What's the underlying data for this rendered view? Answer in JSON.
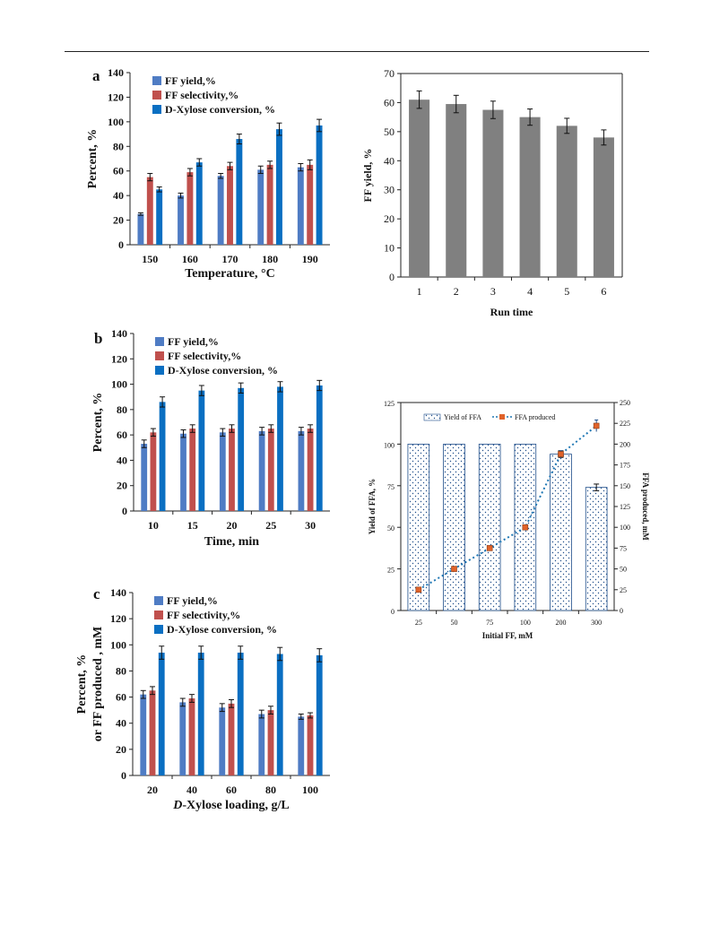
{
  "colors": {
    "ff_yield": "#4f7cc4",
    "ff_selectivity": "#c0504d",
    "xylose_conversion": "#0a6fc2",
    "run_bar": "#808080",
    "ffa_line": "#1f77b4",
    "ffa_marker": "#e0632b",
    "ffa_bar_fill": "#ffffff",
    "ffa_bar_dots": "#1f4e8a"
  },
  "chart_data": [
    {
      "id": "a",
      "type": "bar",
      "panel_label": "a",
      "xlabel": "Temperature, °C",
      "ylabel": "Percent, %",
      "ylim": [
        0,
        140
      ],
      "yticks": [
        0,
        20,
        40,
        60,
        80,
        100,
        120,
        140
      ],
      "categories": [
        "150",
        "160",
        "170",
        "180",
        "190"
      ],
      "legend_position": "top-left",
      "series": [
        {
          "name": "FF yield,%",
          "color_key": "ff_yield",
          "values": [
            25,
            40,
            56,
            61,
            63
          ],
          "errors": [
            1,
            2,
            2,
            3,
            3
          ]
        },
        {
          "name": "FF selectivity,%",
          "color_key": "ff_selectivity",
          "values": [
            55,
            59,
            64,
            65,
            65
          ],
          "errors": [
            3,
            3,
            3,
            3,
            4
          ]
        },
        {
          "name": "D-Xylose conversion, %",
          "color_key": "xylose_conversion",
          "values": [
            45,
            67,
            86,
            94,
            97
          ],
          "errors": [
            2,
            3,
            4,
            5,
            5
          ]
        }
      ]
    },
    {
      "id": "run",
      "type": "bar",
      "xlabel": "Run time",
      "ylabel": "FF yield, %",
      "ylim": [
        0,
        70
      ],
      "yticks": [
        0,
        10,
        20,
        30,
        40,
        50,
        60,
        70
      ],
      "categories": [
        "1",
        "2",
        "3",
        "4",
        "5",
        "6"
      ],
      "series": [
        {
          "color_key": "run_bar",
          "values": [
            61,
            59.5,
            57.5,
            55,
            52,
            48
          ],
          "errors": [
            3,
            3,
            3,
            2.8,
            2.6,
            2.6
          ]
        }
      ]
    },
    {
      "id": "b",
      "type": "bar",
      "panel_label": "b",
      "xlabel": "Time, min",
      "ylabel": "Percent, %",
      "ylim": [
        0,
        140
      ],
      "yticks": [
        0,
        20,
        40,
        60,
        80,
        100,
        120,
        140
      ],
      "categories": [
        "10",
        "15",
        "20",
        "25",
        "30"
      ],
      "legend_position": "top-left",
      "series": [
        {
          "name": "FF yield,%",
          "color_key": "ff_yield",
          "values": [
            53,
            61,
            62,
            63,
            63
          ],
          "errors": [
            3,
            3,
            3,
            3,
            3
          ]
        },
        {
          "name": "FF selectivity,%",
          "color_key": "ff_selectivity",
          "values": [
            62,
            65,
            65,
            65,
            65
          ],
          "errors": [
            3,
            3,
            3,
            3,
            3
          ]
        },
        {
          "name": "D-Xylose conversion, %",
          "color_key": "xylose_conversion",
          "values": [
            86,
            95,
            97,
            98,
            99
          ],
          "errors": [
            4,
            4,
            4,
            4,
            4
          ]
        }
      ]
    },
    {
      "id": "ffa",
      "type": "bar",
      "xlabel": "Initial FF, mM",
      "ylabel": "Yield of FFA, %",
      "y2label": "FFA produced, mM",
      "ylim": [
        0,
        125
      ],
      "yticks": [
        0,
        25,
        50,
        75,
        100,
        125
      ],
      "y2lim": [
        0,
        250
      ],
      "y2ticks": [
        0,
        25,
        50,
        75,
        100,
        125,
        150,
        175,
        200,
        225,
        250
      ],
      "categories": [
        "25",
        "50",
        "75",
        "100",
        "200",
        "300"
      ],
      "legend_position": "top",
      "series": [
        {
          "name": "Yield of FFA",
          "color_key": "ffa_bar_fill",
          "values": [
            100,
            100,
            100,
            100,
            94,
            74
          ],
          "errors": [
            0,
            0,
            0,
            0,
            2,
            2
          ]
        },
        {
          "name": "FFA produced",
          "axis": "right",
          "style": "dotted-line",
          "color_key": "ffa_line",
          "values": [
            25,
            50,
            75,
            100,
            188,
            222
          ],
          "errors": [
            1,
            1,
            1,
            2,
            4,
            7
          ]
        }
      ]
    },
    {
      "id": "c",
      "type": "bar",
      "panel_label": "c",
      "xlabel": "D-Xylose loading, g/L",
      "xlabel_italic_prefix": "D",
      "xlabel_rest": "-Xylose loading, g/L",
      "ylabel_lines": [
        "Percent, %",
        "or FF produced , mM"
      ],
      "ylim": [
        0,
        140
      ],
      "yticks": [
        0,
        20,
        40,
        60,
        80,
        100,
        120,
        140
      ],
      "categories": [
        "20",
        "40",
        "60",
        "80",
        "100"
      ],
      "legend_position": "top-left",
      "series": [
        {
          "name": "FF yield,%",
          "color_key": "ff_yield",
          "values": [
            62,
            56,
            52,
            47,
            45
          ],
          "errors": [
            3,
            3,
            3,
            3,
            2
          ]
        },
        {
          "name": "FF selectivity,%",
          "color_key": "ff_selectivity",
          "values": [
            65,
            59,
            55,
            50,
            46
          ],
          "errors": [
            3,
            3,
            3,
            3,
            2
          ]
        },
        {
          "name": "D-Xylose conversion, %",
          "color_key": "xylose_conversion",
          "values": [
            94,
            94,
            94,
            93,
            92
          ],
          "errors": [
            5,
            5,
            5,
            5,
            5
          ]
        }
      ]
    }
  ]
}
